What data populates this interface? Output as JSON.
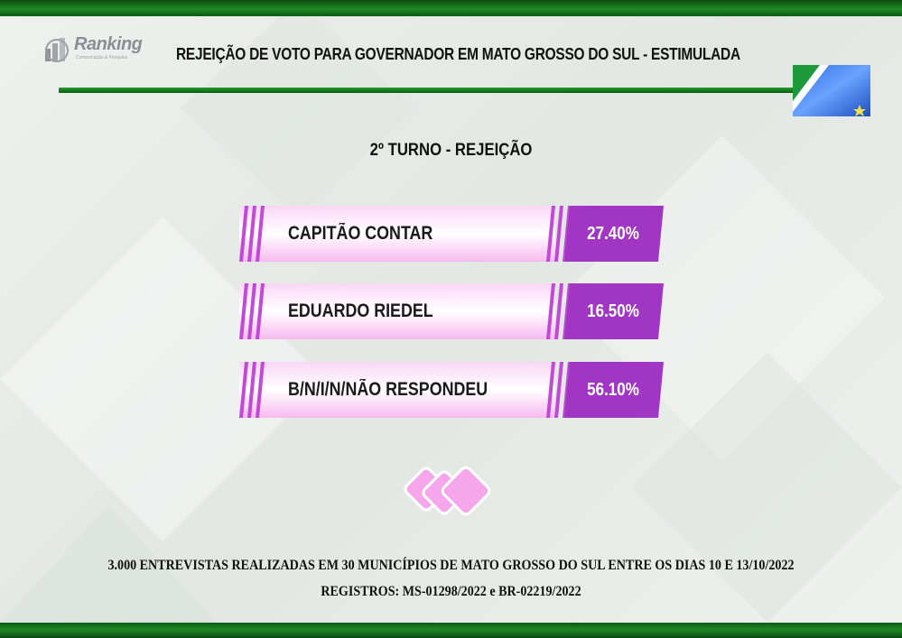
{
  "header": {
    "logo_text": "Ranking",
    "logo_subtext": "Comunicação & Pesquisa",
    "title": "REJEIÇÃO DE VOTO PARA GOVERNADOR  EM MATO GROSSO DO SUL - ESTIMULADA"
  },
  "chart_data": {
    "type": "bar",
    "title": "2º TURNO - REJEIÇÃO",
    "categories": [
      "CAPITÃO CONTAR",
      "EDUARDO RIEDEL",
      "B/N/I/N/NÃO RESPONDEU"
    ],
    "values": [
      27.4,
      16.5,
      56.1
    ],
    "value_labels": [
      "27.40%",
      "16.50%",
      "56.10%"
    ],
    "colors": {
      "bar": "#f7b9ef",
      "value_box": "#a236c4",
      "accent": "#c04ad6"
    }
  },
  "footer": {
    "line1": "3.000 ENTREVISTAS REALIZADAS EM 30 MUNICÍPIOS DE MATO GROSSO DO SUL ENTRE OS DIAS 10 E 13/10/2022",
    "line2": "REGISTROS: MS-01298/2022 e BR-02219/2022"
  },
  "icons": [
    "ranking-logo-icon",
    "mato-grosso-do-sul-flag-icon",
    "diamond-ornament-icon"
  ]
}
